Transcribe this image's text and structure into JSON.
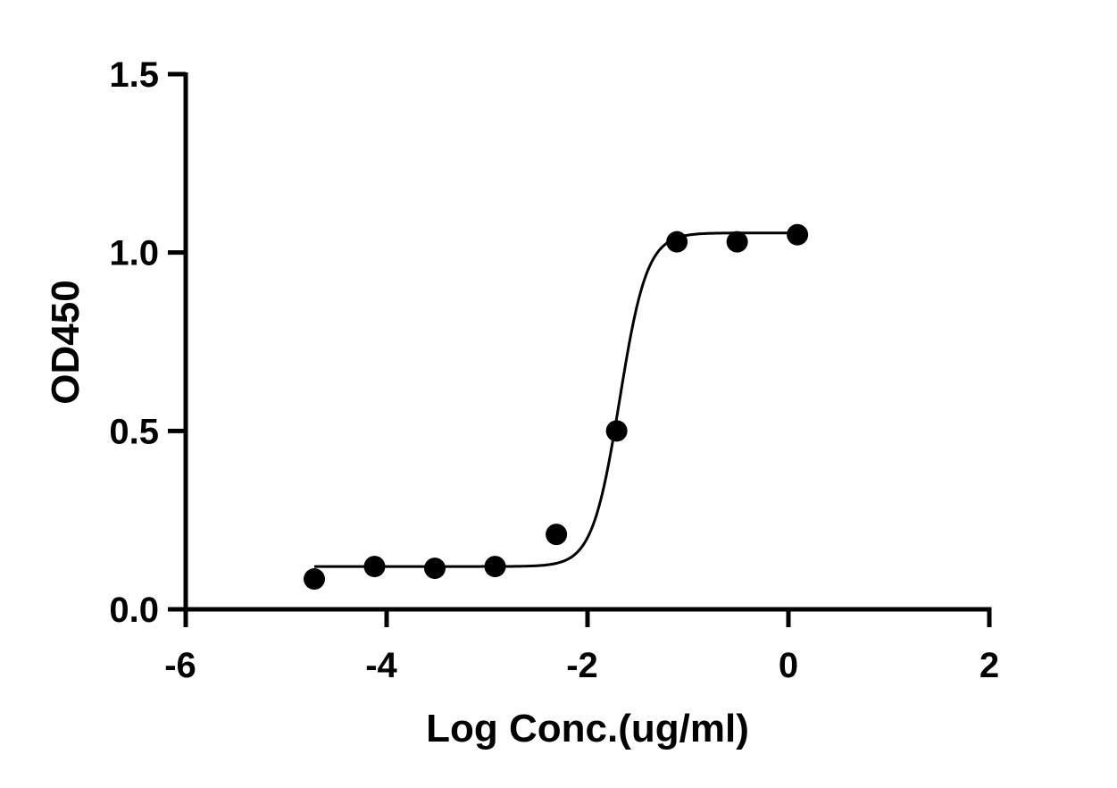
{
  "chart_data": {
    "type": "scatter",
    "title": "",
    "xlabel": "Log Conc.(ug/ml)",
    "ylabel": "OD450",
    "xlim": [
      -6,
      2
    ],
    "ylim": [
      0,
      1.5
    ],
    "xticks": [
      -6,
      -4,
      -2,
      0,
      2
    ],
    "yticks": [
      0,
      0.5,
      1.0,
      1.5
    ],
    "xtick_labels": [
      "-6",
      "-4",
      "-2",
      "0",
      "2"
    ],
    "ytick_labels": [
      "0.0",
      "0.5",
      "1.0",
      "1.5"
    ],
    "grid": false,
    "colors": {
      "points": "#000000",
      "curve": "#000000",
      "axes": "#000000"
    },
    "series": [
      {
        "x": [
          -4.72,
          -4.12,
          -3.52,
          -2.92,
          -2.31,
          -1.71,
          -1.11,
          -0.51,
          0.09
        ],
        "y": [
          0.085,
          0.12,
          0.115,
          0.12,
          0.21,
          0.5,
          1.03,
          1.03,
          1.05
        ]
      }
    ],
    "fit_curve": {
      "model": "4PL",
      "bottom": 0.12,
      "top": 1.055,
      "logEC50": -1.68,
      "hill": 3.2,
      "x_range": [
        -4.72,
        0.09
      ]
    }
  }
}
